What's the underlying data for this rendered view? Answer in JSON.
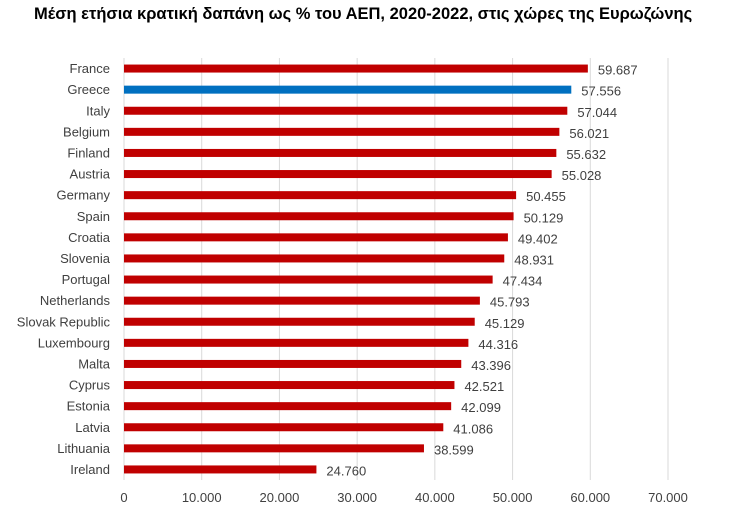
{
  "chart_data": {
    "type": "bar",
    "orientation": "horizontal",
    "title": "Μέση ετήσια κρατική δαπάνη ως % του ΑΕΠ, 2020-2022, στις χώρες της Ευρωζώνης",
    "categories": [
      "France",
      "Greece",
      "Italy",
      "Belgium",
      "Finland",
      "Austria",
      "Germany",
      "Spain",
      "Croatia",
      "Slovenia",
      "Portugal",
      "Netherlands",
      "Slovak Republic",
      "Luxembourg",
      "Malta",
      "Cyprus",
      "Estonia",
      "Latvia",
      "Lithuania",
      "Ireland"
    ],
    "values": [
      59.687,
      57.556,
      57.044,
      56.021,
      55.632,
      55.028,
      50.455,
      50.129,
      49.402,
      48.931,
      47.434,
      45.793,
      45.129,
      44.316,
      43.396,
      42.521,
      42.099,
      41.086,
      38.599,
      24.76
    ],
    "value_labels": [
      "59.687",
      "57.556",
      "57.044",
      "56.021",
      "55.632",
      "55.028",
      "50.455",
      "50.129",
      "49.402",
      "48.931",
      "47.434",
      "45.793",
      "45.129",
      "44.316",
      "43.396",
      "42.521",
      "42.099",
      "41.086",
      "38.599",
      "24.760"
    ],
    "xlim": [
      0,
      70
    ],
    "xticks": [
      0,
      10,
      20,
      30,
      40,
      50,
      60,
      70
    ],
    "xtick_labels": [
      "0",
      "10.000",
      "20.000",
      "30.000",
      "40.000",
      "50.000",
      "60.000",
      "70.000"
    ],
    "grid": true,
    "legend": "none",
    "colors": {
      "default": "#C00000",
      "highlight": "#0070C0",
      "highlight_category": "Greece",
      "grid": "#D9D9D9"
    }
  }
}
